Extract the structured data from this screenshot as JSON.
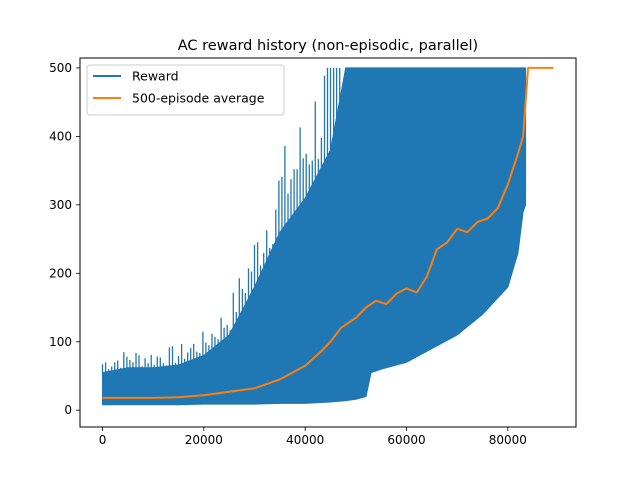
{
  "chart_data": {
    "type": "line",
    "title": "AC reward history (non-episodic, parallel)",
    "xlabel": "",
    "ylabel": "",
    "xlim": [
      -4450,
      93450
    ],
    "ylim": [
      -24.5,
      514.5
    ],
    "xticks": [
      0,
      20000,
      40000,
      60000,
      80000
    ],
    "yticks": [
      0,
      100,
      200,
      300,
      400,
      500
    ],
    "grid": false,
    "legend_position": "top-left",
    "colors": {
      "reward": "#1f77b4",
      "average": "#ff7f0e"
    },
    "series": [
      {
        "name": "Reward",
        "kind": "band",
        "x": [
          0,
          5000,
          10000,
          15000,
          20000,
          25000,
          30000,
          35000,
          40000,
          45000,
          48000,
          50000,
          52000,
          53000,
          55000,
          60000,
          65000,
          70000,
          75000,
          80000,
          82000,
          83000,
          83500
        ],
        "lower": [
          8,
          8,
          8,
          8,
          9,
          9,
          9,
          10,
          10,
          12,
          14,
          16,
          20,
          55,
          60,
          70,
          90,
          110,
          140,
          180,
          230,
          290,
          300
        ],
        "upper": [
          55,
          62,
          62,
          66,
          80,
          110,
          180,
          260,
          310,
          380,
          500,
          500,
          500,
          500,
          500,
          500,
          500,
          500,
          500,
          500,
          500,
          500,
          500
        ]
      },
      {
        "name": "500-episode average",
        "kind": "line",
        "x": [
          0,
          5000,
          10000,
          15000,
          20000,
          25000,
          30000,
          35000,
          40000,
          43000,
          45000,
          47000,
          50000,
          52000,
          54000,
          56000,
          58000,
          60000,
          62000,
          64000,
          66000,
          68000,
          70000,
          72000,
          74000,
          76000,
          78000,
          80000,
          82000,
          83000,
          84000,
          89000
        ],
        "y": [
          18,
          18,
          18,
          19,
          22,
          27,
          32,
          45,
          65,
          85,
          100,
          120,
          135,
          150,
          160,
          155,
          170,
          178,
          172,
          195,
          235,
          245,
          265,
          260,
          275,
          280,
          295,
          330,
          375,
          400,
          500,
          500
        ]
      }
    ]
  }
}
